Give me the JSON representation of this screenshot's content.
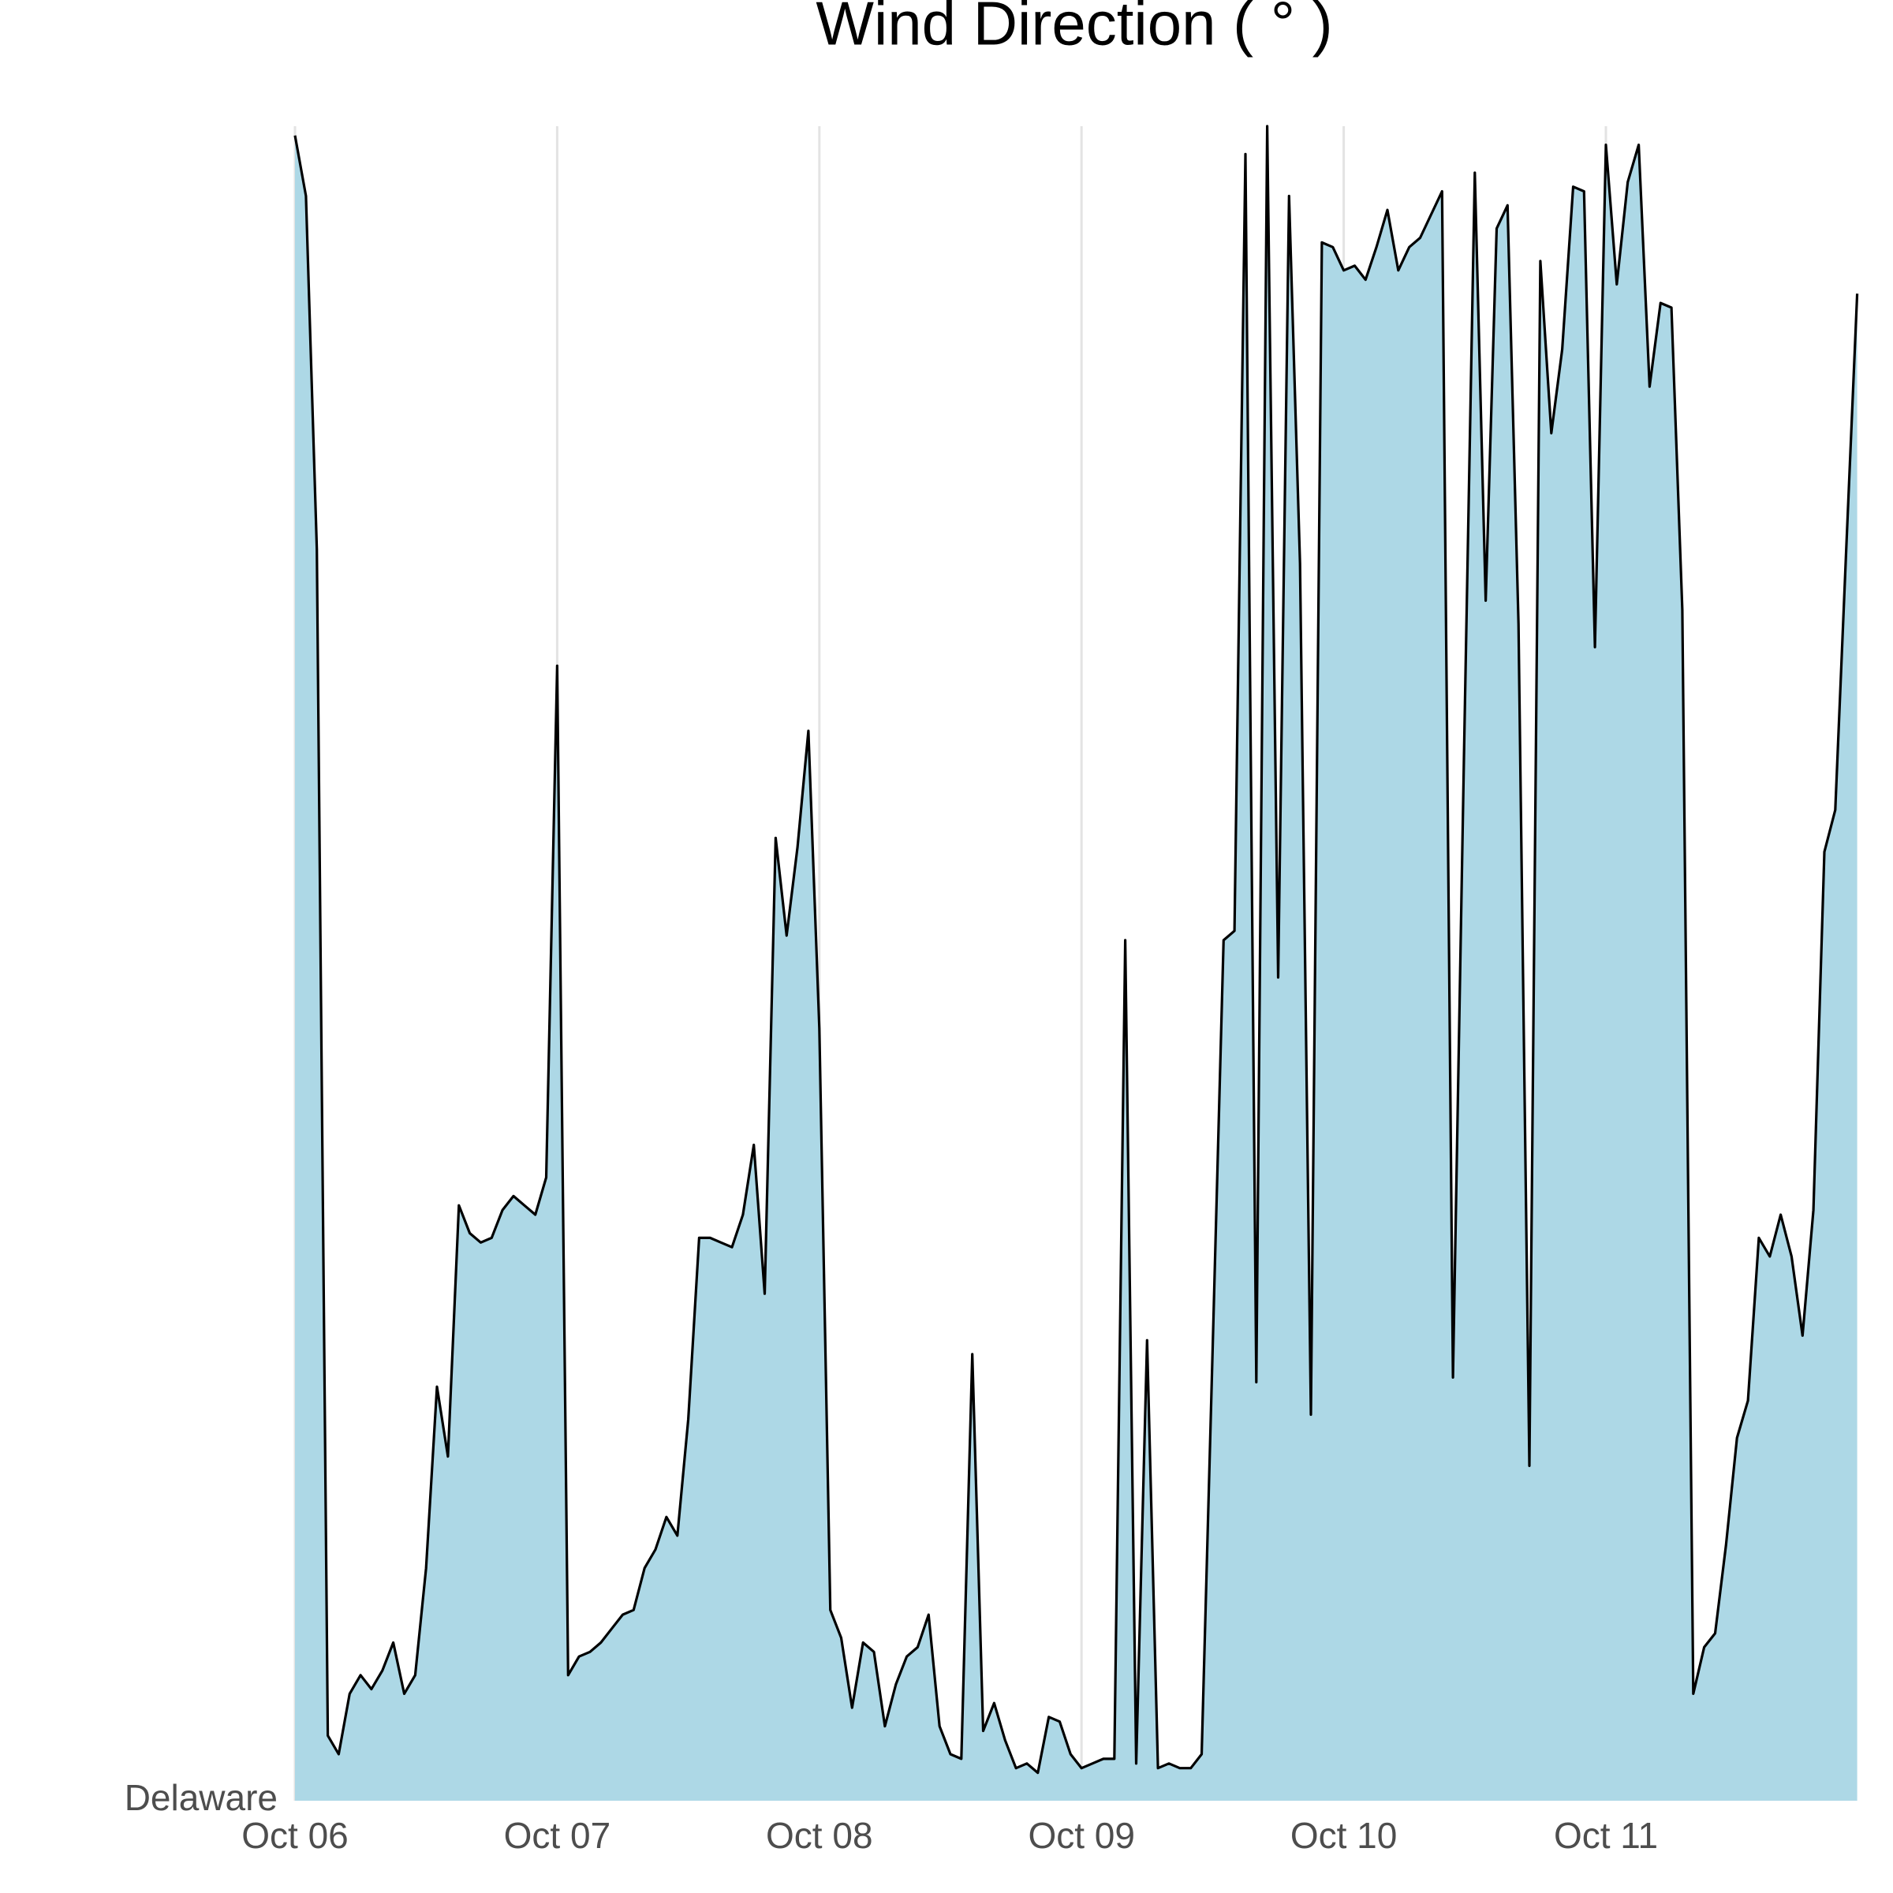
{
  "chart_data": {
    "type": "area",
    "title": "Wind Direction ( ° )",
    "categories": [
      "Oct 06",
      null,
      null,
      null,
      null,
      null,
      null,
      null,
      null,
      null,
      null,
      null,
      null,
      null,
      null,
      null,
      null,
      null,
      null,
      null,
      null,
      null,
      null,
      null,
      "Oct 07",
      null,
      null,
      null,
      null,
      null,
      null,
      null,
      null,
      null,
      null,
      null,
      null,
      null,
      null,
      null,
      null,
      null,
      null,
      null,
      null,
      null,
      null,
      null,
      "Oct 08",
      null,
      null,
      null,
      null,
      null,
      null,
      null,
      null,
      null,
      null,
      null,
      null,
      null,
      null,
      null,
      null,
      null,
      null,
      null,
      null,
      null,
      null,
      null,
      "Oct 09",
      null,
      null,
      null,
      null,
      null,
      null,
      null,
      null,
      null,
      null,
      null,
      null,
      null,
      null,
      null,
      null,
      null,
      null,
      null,
      null,
      null,
      null,
      null,
      "Oct 10",
      null,
      null,
      null,
      null,
      null,
      null,
      null,
      null,
      null,
      null,
      null,
      null,
      null,
      null,
      null,
      null,
      null,
      null,
      null,
      null,
      null,
      null,
      null,
      "Oct 11",
      null,
      null,
      null,
      null,
      null,
      null,
      null,
      null,
      null,
      null,
      null,
      null,
      null,
      null,
      null,
      null,
      null,
      null,
      null,
      null,
      null,
      null,
      null
    ],
    "series": [
      {
        "name": "Delaware",
        "color": "#add8e6",
        "line_color": "#000000",
        "values": [
          358,
          345,
          269,
          14,
          10,
          23,
          27,
          24,
          28,
          34,
          23,
          27,
          50,
          89,
          74,
          128,
          122,
          120,
          121,
          127,
          130,
          128,
          126,
          134,
          244,
          27,
          31,
          32,
          34,
          37,
          40,
          41,
          50,
          54,
          61,
          57,
          82,
          121,
          121,
          120,
          119,
          126,
          141,
          109,
          207,
          186,
          205,
          230,
          166,
          41,
          35,
          20,
          34,
          32,
          16,
          25,
          31,
          33,
          40,
          16,
          10,
          9,
          96,
          15,
          21,
          13,
          7,
          8,
          6,
          18,
          17,
          10,
          7,
          8,
          9,
          9,
          185,
          8,
          99,
          7,
          8,
          7,
          7,
          10,
          97,
          185,
          187,
          354,
          90,
          360,
          177,
          345,
          266,
          83,
          335,
          334,
          329,
          330,
          327,
          334,
          342,
          329,
          334,
          336,
          341,
          346,
          91,
          224,
          350,
          258,
          338,
          343,
          253,
          72,
          331,
          294,
          312,
          347,
          346,
          248,
          356,
          326,
          348,
          356,
          304,
          322,
          321,
          256,
          23,
          33,
          36,
          55,
          78,
          86,
          121,
          117,
          126,
          117,
          100,
          127,
          204,
          213,
          269,
          324
        ]
      }
    ],
    "ylim": [
      0,
      360
    ],
    "grid": true
  }
}
